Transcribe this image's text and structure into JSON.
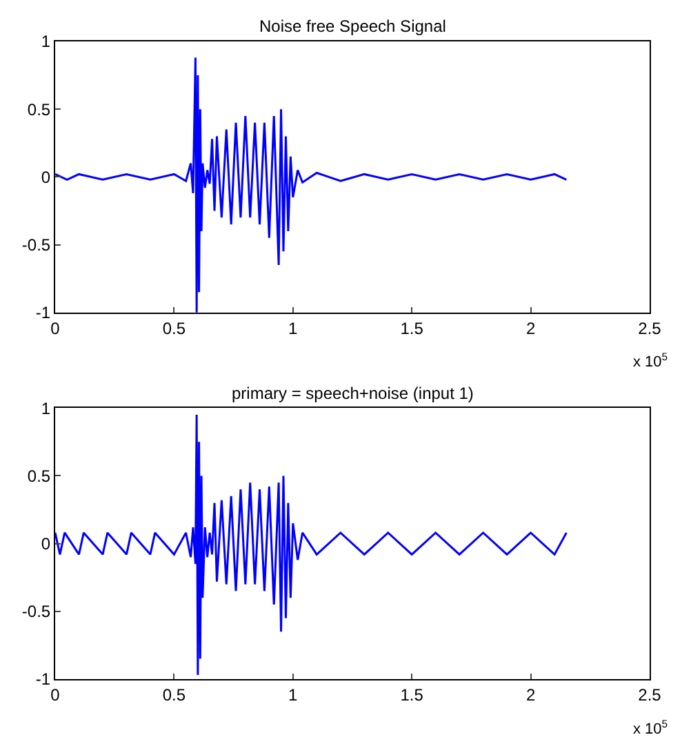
{
  "chart_data": [
    {
      "type": "line",
      "title": "Noise free Speech Signal",
      "color": "#0000ff",
      "x": [
        0,
        0.05,
        0.1,
        0.2,
        0.3,
        0.4,
        0.5,
        0.55,
        0.57,
        0.58,
        0.59,
        0.595,
        0.6,
        0.605,
        0.61,
        0.615,
        0.62,
        0.63,
        0.64,
        0.65,
        0.66,
        0.67,
        0.68,
        0.7,
        0.72,
        0.74,
        0.76,
        0.78,
        0.8,
        0.82,
        0.84,
        0.86,
        0.88,
        0.9,
        0.92,
        0.94,
        0.95,
        0.96,
        0.97,
        0.98,
        0.99,
        1.0,
        1.02,
        1.04,
        1.1,
        1.2,
        1.3,
        1.4,
        1.5,
        1.6,
        1.7,
        1.8,
        1.9,
        2.0,
        2.1,
        2.15
      ],
      "values": [
        0.02,
        -0.02,
        0.02,
        -0.02,
        0.02,
        -0.02,
        0.02,
        -0.03,
        0.1,
        -0.12,
        0.88,
        -1,
        0.75,
        -0.85,
        0.5,
        -0.4,
        0.1,
        -0.08,
        0.05,
        -0.05,
        0.28,
        -0.25,
        0.3,
        -0.3,
        0.35,
        -0.35,
        0.4,
        -0.3,
        0.45,
        -0.3,
        0.4,
        -0.35,
        0.4,
        -0.45,
        0.45,
        -0.65,
        0.5,
        -0.55,
        0.3,
        -0.4,
        0.15,
        -0.15,
        0.05,
        -0.04,
        0.03,
        -0.03,
        0.02,
        -0.02,
        0.02,
        -0.02,
        0.02,
        -0.02,
        0.02,
        -0.02,
        0.02,
        -0.02
      ],
      "xlim": [
        0,
        2.5
      ],
      "xticks": [
        0,
        0.5,
        1,
        1.5,
        2,
        2.5
      ],
      "ylim": [
        -1,
        1
      ],
      "yticks": [
        -1,
        -0.5,
        0,
        0.5,
        1
      ],
      "annotations": [
        "x 10$^{5}$"
      ]
    },
    {
      "type": "line",
      "title": "primary = speech+noise (input 1)",
      "color": "#0000ff",
      "x": [
        0,
        0.02,
        0.04,
        0.1,
        0.12,
        0.2,
        0.22,
        0.3,
        0.32,
        0.4,
        0.42,
        0.5,
        0.55,
        0.57,
        0.58,
        0.59,
        0.595,
        0.6,
        0.605,
        0.61,
        0.615,
        0.62,
        0.63,
        0.64,
        0.65,
        0.66,
        0.67,
        0.68,
        0.7,
        0.72,
        0.74,
        0.76,
        0.78,
        0.8,
        0.82,
        0.84,
        0.86,
        0.88,
        0.9,
        0.92,
        0.94,
        0.95,
        0.96,
        0.97,
        0.98,
        0.99,
        1.0,
        1.02,
        1.04,
        1.1,
        1.2,
        1.3,
        1.4,
        1.5,
        1.6,
        1.7,
        1.8,
        1.9,
        2.0,
        2.1,
        2.15
      ],
      "values": [
        0.08,
        -0.08,
        0.08,
        -0.08,
        0.08,
        -0.08,
        0.08,
        -0.08,
        0.08,
        -0.08,
        0.08,
        -0.08,
        0.08,
        -0.1,
        0.12,
        -0.15,
        0.95,
        -0.97,
        0.75,
        -0.85,
        0.5,
        -0.4,
        0.12,
        -0.1,
        0.08,
        -0.08,
        0.3,
        -0.28,
        0.32,
        -0.3,
        0.35,
        -0.35,
        0.4,
        -0.3,
        0.45,
        -0.3,
        0.4,
        -0.35,
        0.42,
        -0.45,
        0.45,
        -0.65,
        0.5,
        -0.55,
        0.3,
        -0.4,
        0.15,
        -0.12,
        0.08,
        -0.08,
        0.08,
        -0.08,
        0.08,
        -0.08,
        0.08,
        -0.08,
        0.08,
        -0.08,
        0.08,
        -0.08,
        0.08
      ],
      "xlim": [
        0,
        2.5
      ],
      "xticks": [
        0,
        0.5,
        1,
        1.5,
        2,
        2.5
      ],
      "ylim": [
        -1,
        1
      ],
      "yticks": [
        -1,
        -0.5,
        0,
        0.5,
        1
      ],
      "annotations": [
        "x 10$^{5}$"
      ]
    }
  ]
}
